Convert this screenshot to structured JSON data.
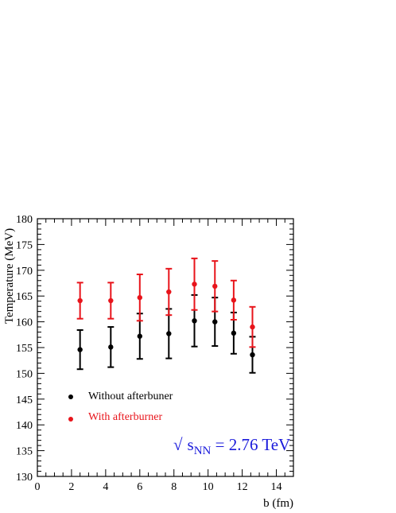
{
  "chart_data": {
    "type": "scatter",
    "xlabel": "b (fm)",
    "ylabel": "Temperature (MeV)",
    "xlim": [
      0,
      15
    ],
    "ylim": [
      130,
      180
    ],
    "x_ticks": [
      0,
      2,
      4,
      6,
      8,
      10,
      12,
      14
    ],
    "y_ticks": [
      130,
      135,
      140,
      145,
      150,
      155,
      160,
      165,
      170,
      175,
      180
    ],
    "annotation": {
      "prefix": "√",
      "symbol": "s",
      "subscript": "NN",
      "suffix": " = 2.76 TeV",
      "color": "#1a1adb"
    },
    "legend_placement": "lower-left",
    "series": [
      {
        "name": "Without afterbuner",
        "color": "#000000",
        "x": [
          2.5,
          4.3,
          6.0,
          7.7,
          9.2,
          10.4,
          11.5,
          12.6
        ],
        "y": [
          154.6,
          155.1,
          157.2,
          157.7,
          160.2,
          160.0,
          157.8,
          153.6
        ],
        "err_low": [
          3.8,
          3.9,
          4.4,
          4.8,
          5.0,
          4.7,
          4.0,
          3.5
        ],
        "err_high": [
          3.8,
          3.9,
          4.4,
          4.8,
          5.0,
          4.7,
          4.0,
          3.5
        ]
      },
      {
        "name": "With afterburner",
        "color": "#e8141b",
        "x": [
          2.5,
          4.3,
          6.0,
          7.7,
          9.2,
          10.4,
          11.5,
          12.6
        ],
        "y": [
          164.1,
          164.1,
          164.7,
          165.8,
          167.3,
          166.9,
          164.2,
          159.0
        ],
        "err_low": [
          3.5,
          3.5,
          4.5,
          4.5,
          5.0,
          4.9,
          3.8,
          3.9
        ],
        "err_high": [
          3.5,
          3.5,
          4.5,
          4.5,
          5.0,
          4.9,
          3.8,
          3.9
        ]
      }
    ]
  }
}
